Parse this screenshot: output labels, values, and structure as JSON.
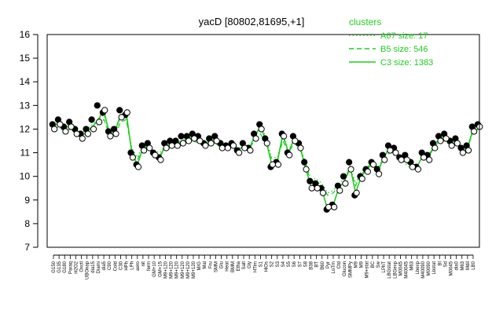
{
  "chart_data": {
    "type": "line",
    "title": "yacD [80802,81695,+1]",
    "xlabel": "",
    "ylabel": "",
    "ylim": [
      7,
      16
    ],
    "yticks": [
      7,
      8,
      9,
      10,
      11,
      12,
      13,
      14,
      15,
      16
    ],
    "grid": false,
    "legend": {
      "placement": "top-right",
      "title": "clusters",
      "color": "#22cc22",
      "entries": [
        {
          "label": "A67 size: 17",
          "style": "dotted"
        },
        {
          "label": "B5 size: 546",
          "style": "dashed"
        },
        {
          "label": "C3 size: 1383",
          "style": "solid"
        }
      ]
    },
    "x_tick_labels": [
      "G150",
      "G135",
      "G180",
      "Paraq",
      "H2O2",
      "Oxctl",
      "UBOnap",
      "dia15",
      "Diami",
      "dia5",
      "C90",
      "Cold",
      "C30",
      "HPh",
      "LPh",
      "aero",
      "nit",
      "ferm",
      "GM+10",
      "GM+15",
      "M9+120",
      "M9+120",
      "M9+120",
      "M9+120",
      "M9+120",
      "M9+120",
      "M/G",
      "Mal",
      "Fru",
      "SMM",
      "Glu",
      "Heat",
      "BMM",
      "Etha",
      "Salt",
      "Gly",
      "HTim",
      "S1",
      "HiOs",
      "S2",
      "S3",
      "S4",
      "S5",
      "S6",
      "S7",
      "S8",
      "B38",
      "BT",
      "B60",
      "Pyr",
      "LoTm",
      "Ctd",
      "Glucon",
      "SMMPy",
      "M9",
      "M9",
      "M9+stat",
      "BC",
      "Sw",
      "LPhT",
      "LBGstat",
      "LBGexp",
      "M0045",
      "M40045",
      "M63",
      "Lbexp",
      "M40090",
      "M0090",
      "Lbstat",
      "BI",
      "Sd",
      "M0045",
      "dia0",
      "M63",
      "Mdil",
      "LB0"
    ],
    "series": [
      {
        "style": "solid",
        "values": [
          12.1,
          12.3,
          12.0,
          12.2,
          11.9,
          11.7,
          11.9,
          12.1,
          12.4,
          12.8,
          11.8,
          11.9,
          12.6,
          12.7,
          11.0,
          10.5,
          11.2,
          11.3,
          11.0,
          10.8,
          11.3,
          11.4,
          11.4,
          11.5,
          11.6,
          11.7,
          11.6,
          11.4,
          11.5,
          11.6,
          11.3,
          11.3,
          11.4,
          11.1,
          11.3,
          11.2,
          11.7,
          12.1,
          11.5,
          10.5,
          10.6,
          11.8,
          11.0,
          11.6,
          11.3,
          10.4,
          9.6,
          9.6,
          9.4,
          8.6,
          8.8,
          9.5,
          9.8,
          10.4,
          9.3,
          10.0,
          10.3,
          10.6,
          10.2,
          10.8,
          11.2,
          11.1,
          10.8,
          10.8,
          10.5,
          10.4,
          10.9,
          10.8,
          11.3,
          11.6,
          11.7,
          11.4,
          11.5,
          11.1,
          11.2,
          12.0,
          12.2
        ]
      },
      {
        "style": "dashed",
        "values": [
          12.0,
          12.1,
          11.9,
          12.0,
          11.8,
          11.6,
          11.9,
          12.0,
          12.2,
          12.4,
          11.8,
          11.7,
          12.3,
          12.4,
          11.1,
          10.7,
          11.2,
          11.2,
          11.0,
          10.9,
          11.2,
          11.3,
          11.4,
          11.4,
          11.5,
          11.5,
          11.4,
          11.3,
          11.4,
          11.4,
          11.2,
          11.2,
          11.3,
          11.1,
          11.2,
          11.2,
          11.5,
          11.8,
          11.4,
          10.7,
          10.7,
          11.5,
          11.0,
          11.4,
          11.2,
          10.5,
          9.8,
          9.8,
          9.6,
          9.2,
          9.3,
          9.6,
          9.8,
          10.3,
          9.6,
          10.1,
          10.3,
          10.5,
          10.3,
          10.7,
          11.0,
          11.0,
          10.7,
          10.6,
          10.4,
          10.5,
          10.8,
          10.8,
          11.2,
          11.5,
          11.5,
          11.3,
          11.4,
          11.1,
          11.2,
          11.9,
          12.0
        ]
      },
      {
        "style": "dotted",
        "values": [
          12.1,
          12.2,
          12.0,
          12.1,
          11.9,
          11.8,
          12.0,
          12.2,
          12.4,
          12.6,
          11.9,
          11.8,
          12.5,
          12.5,
          11.2,
          10.8,
          11.3,
          11.3,
          11.1,
          11.0,
          11.3,
          11.4,
          11.5,
          11.5,
          11.6,
          11.6,
          11.5,
          11.4,
          11.5,
          11.5,
          11.3,
          11.3,
          11.4,
          11.2,
          11.3,
          11.3,
          11.6,
          12.3,
          11.6,
          10.8,
          10.8,
          11.6,
          11.1,
          11.5,
          11.3,
          10.6,
          9.9,
          9.9,
          9.7,
          9.3,
          9.4,
          9.7,
          9.9,
          10.4,
          9.7,
          10.2,
          10.4,
          10.6,
          10.4,
          10.8,
          11.1,
          11.1,
          10.8,
          10.5,
          10.3,
          10.4,
          10.9,
          10.9,
          11.3,
          11.6,
          11.6,
          11.4,
          11.5,
          11.2,
          11.3,
          12.0,
          12.1
        ]
      }
    ],
    "points": [
      [
        12.2,
        12.4,
        12.1,
        12.3,
        12.0,
        11.8,
        12.0,
        12.4,
        13.0,
        12.7,
        11.9,
        12.0,
        12.8,
        12.6,
        11.0,
        10.5,
        11.3,
        11.4,
        11.0,
        10.8,
        11.4,
        11.5,
        11.5,
        11.7,
        11.7,
        11.8,
        11.7,
        11.4,
        11.6,
        11.7,
        11.4,
        11.3,
        11.4,
        11.1,
        11.4,
        11.2,
        11.8,
        12.2,
        11.6,
        10.4,
        10.6,
        11.8,
        11.0,
        11.7,
        11.4,
        10.6,
        9.8,
        9.7,
        9.5,
        8.6,
        8.8,
        9.6,
        10.0,
        10.6,
        9.2,
        10.0,
        10.3,
        10.6,
        10.3,
        10.9,
        11.3,
        11.2,
        10.8,
        10.9,
        10.6,
        10.4,
        11.0,
        10.9,
        11.4,
        11.7,
        11.8,
        11.5,
        11.6,
        11.2,
        11.3,
        12.1,
        12.2
      ],
      [
        12.0,
        12.2,
        11.9,
        12.1,
        11.8,
        11.6,
        11.8,
        12.0,
        12.3,
        12.8,
        11.7,
        11.8,
        12.5,
        12.7,
        10.8,
        10.4,
        11.1,
        11.2,
        10.9,
        10.7,
        11.2,
        11.3,
        11.3,
        11.4,
        11.5,
        11.6,
        11.5,
        11.3,
        11.4,
        11.5,
        11.2,
        11.2,
        11.3,
        11.0,
        11.2,
        11.1,
        11.6,
        12.0,
        11.4,
        10.5,
        10.5,
        11.7,
        10.9,
        11.5,
        11.2,
        10.3,
        9.5,
        9.5,
        9.3,
        8.7,
        8.7,
        9.4,
        9.7,
        10.3,
        9.3,
        9.9,
        10.2,
        10.5,
        10.1,
        10.7,
        11.1,
        11.0,
        10.7,
        10.7,
        10.4,
        10.3,
        10.8,
        10.7,
        11.2,
        11.5,
        11.6,
        11.3,
        11.4,
        11.0,
        11.1,
        11.9,
        12.1
      ]
    ]
  }
}
